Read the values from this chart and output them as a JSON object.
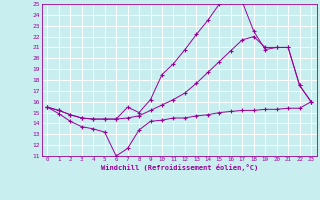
{
  "xlabel": "Windchill (Refroidissement éolien,°C)",
  "bg_color": "#c8eef0",
  "grid_color": "#ffffff",
  "line_color": "#990099",
  "xlim": [
    -0.5,
    23.5
  ],
  "ylim": [
    11,
    25
  ],
  "yticks": [
    11,
    12,
    13,
    14,
    15,
    16,
    17,
    18,
    19,
    20,
    21,
    22,
    23,
    24,
    25
  ],
  "xticks": [
    0,
    1,
    2,
    3,
    4,
    5,
    6,
    7,
    8,
    9,
    10,
    11,
    12,
    13,
    14,
    15,
    16,
    17,
    18,
    19,
    20,
    21,
    22,
    23
  ],
  "series1_x": [
    0,
    1,
    2,
    3,
    4,
    5,
    6,
    7,
    8,
    9,
    10,
    11,
    12,
    13,
    14,
    15,
    16,
    17,
    18,
    19,
    20,
    21,
    22,
    23
  ],
  "series1_y": [
    15.5,
    14.9,
    14.2,
    13.7,
    13.5,
    13.2,
    11.0,
    11.7,
    13.4,
    14.2,
    14.3,
    14.5,
    14.5,
    14.7,
    14.8,
    15.0,
    15.1,
    15.2,
    15.2,
    15.3,
    15.3,
    15.4,
    15.4,
    16.0
  ],
  "series2_x": [
    0,
    1,
    2,
    3,
    4,
    5,
    6,
    7,
    8,
    9,
    10,
    11,
    12,
    13,
    14,
    15,
    16,
    17,
    18,
    19,
    20,
    21,
    22,
    23
  ],
  "series2_y": [
    15.5,
    15.2,
    14.8,
    14.5,
    14.4,
    14.4,
    14.4,
    14.5,
    14.7,
    15.2,
    15.7,
    16.2,
    16.8,
    17.7,
    18.7,
    19.7,
    20.7,
    21.7,
    22.0,
    21.0,
    21.0,
    21.0,
    17.5,
    16.0
  ],
  "series3_x": [
    0,
    1,
    2,
    3,
    4,
    5,
    6,
    7,
    8,
    9,
    10,
    11,
    12,
    13,
    14,
    15,
    16,
    17,
    18,
    19,
    20,
    21,
    22,
    23
  ],
  "series3_y": [
    15.5,
    15.2,
    14.8,
    14.5,
    14.4,
    14.4,
    14.4,
    15.5,
    15.0,
    16.2,
    18.5,
    19.5,
    20.8,
    22.2,
    23.5,
    25.0,
    25.2,
    25.2,
    22.5,
    20.8,
    21.0,
    21.0,
    17.5,
    16.0
  ]
}
